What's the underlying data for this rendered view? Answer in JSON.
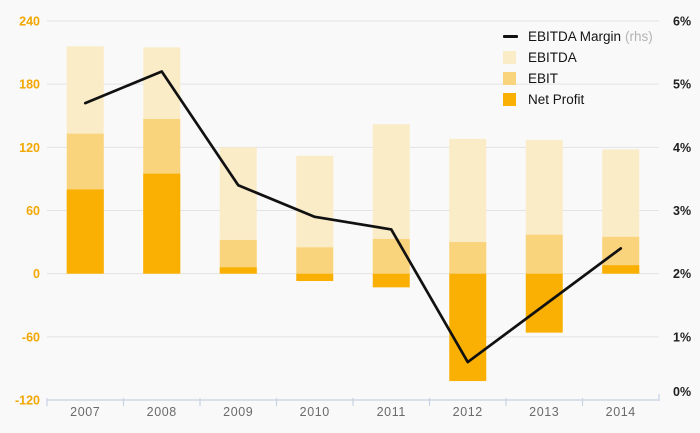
{
  "chart_data": {
    "type": "bar+line",
    "title": "",
    "categories": [
      "2007",
      "2008",
      "2009",
      "2010",
      "2011",
      "2012",
      "2013",
      "2014"
    ],
    "bar_mode": "overlay",
    "grid": true,
    "series": [
      {
        "name": "EBITDA",
        "type": "bar",
        "axis": "left",
        "color": "#FBECC8",
        "values": [
          216,
          215,
          120,
          112,
          142,
          128,
          127,
          118
        ]
      },
      {
        "name": "EBIT",
        "type": "bar",
        "axis": "left",
        "color": "#FAD47D",
        "values": [
          133,
          147,
          32,
          25,
          33,
          30,
          37,
          35
        ]
      },
      {
        "name": "Net Profit",
        "type": "bar",
        "axis": "left",
        "color": "#F9B003",
        "values": [
          80,
          95,
          6,
          -7,
          -13,
          -102,
          -56,
          8
        ]
      },
      {
        "name": "EBITDA Margin",
        "type": "line",
        "axis": "right",
        "color": "#111111",
        "values": [
          4.7,
          5.2,
          3.4,
          2.9,
          2.7,
          0.6,
          1.5,
          2.4
        ]
      }
    ],
    "left_axis": {
      "min": -120,
      "max": 240,
      "step": 60,
      "tick_labels": [
        "240",
        "180",
        "120",
        "60",
        "0",
        "-60",
        "-120"
      ],
      "label_color": "#F2A702"
    },
    "right_axis": {
      "min": 0,
      "max": 6,
      "step": 1,
      "tick_labels": [
        "6%",
        "5%",
        "4%",
        "3%",
        "2%",
        "1%",
        "0%"
      ],
      "label_color": "#1f1f1f"
    },
    "x_axis": {
      "tick_labels": [
        "2007",
        "2008",
        "2009",
        "2010",
        "2011",
        "2012",
        "2013",
        "2014"
      ],
      "label_color": "#6b6b6b",
      "axis_color": "#c7d2e2"
    },
    "gridline_color": "#e3e3e3",
    "background_color": "#f9f9f9",
    "legend_position": "top-right"
  },
  "legend": {
    "items": [
      {
        "label": "EBITDA Margin",
        "suffix": "(rhs)",
        "swatch": "line",
        "color": "#111111"
      },
      {
        "label": "EBITDA",
        "suffix": "",
        "swatch": "box",
        "color": "#FBECC8"
      },
      {
        "label": "EBIT",
        "suffix": "",
        "swatch": "box",
        "color": "#FAD47D"
      },
      {
        "label": "Net Profit",
        "suffix": "",
        "swatch": "box",
        "color": "#F9B003"
      }
    ]
  }
}
